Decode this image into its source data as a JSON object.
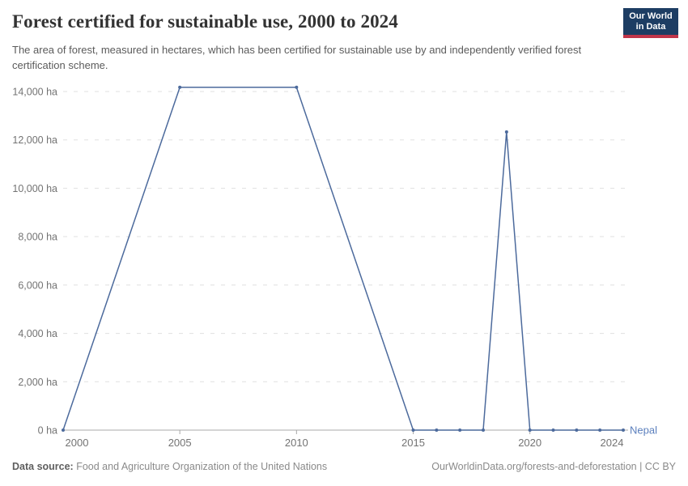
{
  "header": {
    "title": "Forest certified for sustainable use, 2000 to 2024",
    "subtitle": "The area of forest, measured in hectares, which has been certified for sustainable use by and independently verified forest certification scheme.",
    "logo": {
      "line1": "Our World",
      "line2": "in Data",
      "bg_color": "#1d3d63",
      "bar_color": "#c0354a"
    }
  },
  "chart_data": {
    "type": "line",
    "title": "Forest certified for sustainable use, 2000 to 2024",
    "ylabel": "",
    "xlabel": "",
    "unit": "ha",
    "entity_label": "Nepal",
    "series": [
      {
        "name": "Nepal",
        "x": [
          2000,
          2005,
          2010,
          2015,
          2016,
          2017,
          2018,
          2019,
          2020,
          2021,
          2022,
          2023,
          2024
        ],
        "values": [
          0,
          14176,
          14176,
          0,
          0,
          0,
          0,
          12330,
          0,
          0,
          0,
          0,
          0
        ]
      }
    ],
    "xlim": [
      2000,
      2024
    ],
    "ylim": [
      0,
      14000
    ],
    "yticks": [
      {
        "value": 0,
        "label": "0 ha"
      },
      {
        "value": 2000,
        "label": "2,000 ha"
      },
      {
        "value": 4000,
        "label": "4,000 ha"
      },
      {
        "value": 6000,
        "label": "6,000 ha"
      },
      {
        "value": 8000,
        "label": "8,000 ha"
      },
      {
        "value": 10000,
        "label": "10,000 ha"
      },
      {
        "value": 12000,
        "label": "12,000 ha"
      },
      {
        "value": 14000,
        "label": "14,000 ha"
      }
    ],
    "xticks": [
      {
        "value": 2000,
        "label": "2000"
      },
      {
        "value": 2005,
        "label": "2005"
      },
      {
        "value": 2010,
        "label": "2010"
      },
      {
        "value": 2015,
        "label": "2015"
      },
      {
        "value": 2020,
        "label": "2020"
      },
      {
        "value": 2024,
        "label": "2024"
      }
    ],
    "grid": "horizontal-dashed",
    "legend_position": "end-of-line",
    "colors": {
      "line": "#4c6a9c",
      "entity_label": "#5b7fbd",
      "gridline": "#e0e0e0",
      "axis": "#a8a8a8",
      "tick_text": "#737373"
    }
  },
  "footer": {
    "data_source_label": "Data source:",
    "data_source_value": "Food and Agriculture Organization of the United Nations",
    "link_text": "OurWorldinData.org/forests-and-deforestation | CC BY"
  }
}
